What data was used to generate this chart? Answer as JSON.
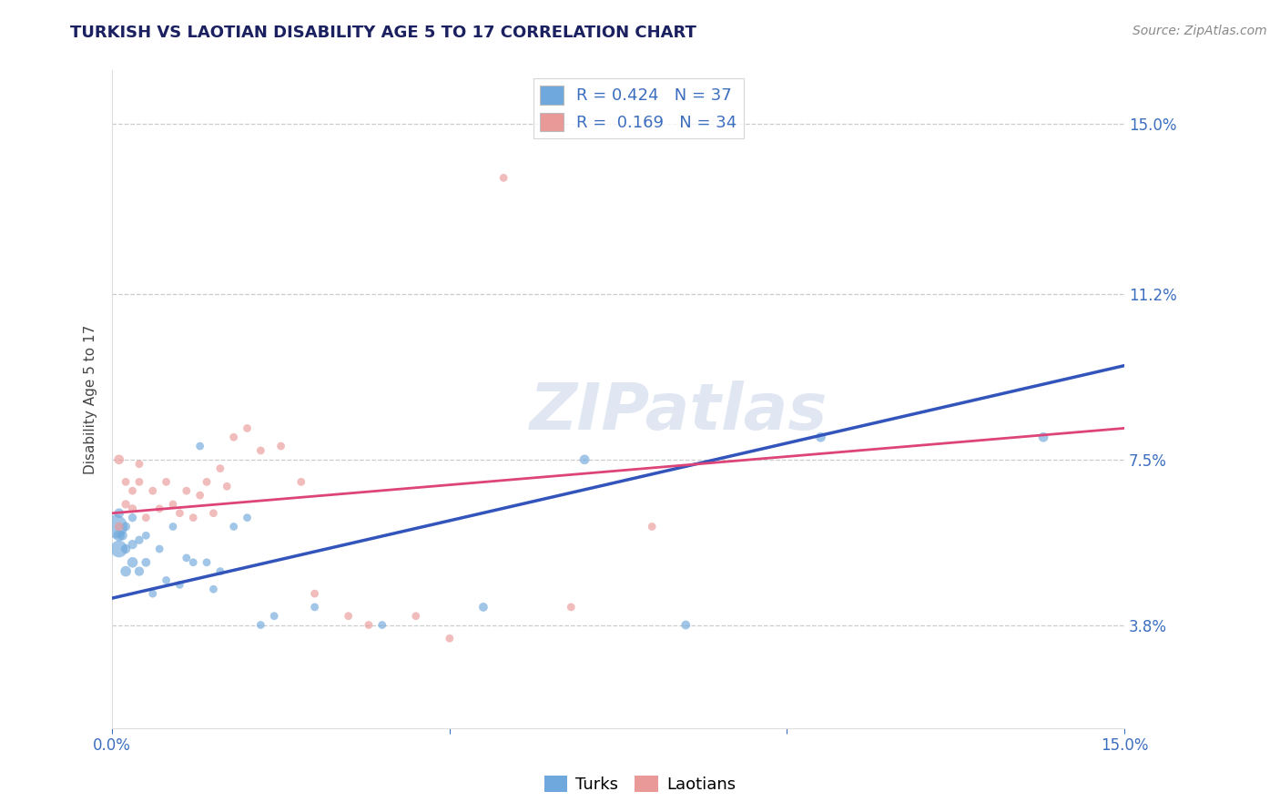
{
  "title": "TURKISH VS LAOTIAN DISABILITY AGE 5 TO 17 CORRELATION CHART",
  "ylabel": "Disability Age 5 to 17",
  "source_text": "Source: ZipAtlas.com",
  "xlim": [
    0.0,
    0.15
  ],
  "ylim": [
    0.015,
    0.162
  ],
  "ytick_labels": [
    "3.8%",
    "7.5%",
    "11.2%",
    "15.0%"
  ],
  "ytick_values": [
    0.038,
    0.075,
    0.112,
    0.15
  ],
  "legend_blue_text": "R = 0.424   N = 37",
  "legend_pink_text": "R =  0.169   N = 34",
  "blue_color": "#6fa8dc",
  "pink_color": "#ea9999",
  "line_blue_color": "#3355bb",
  "line_pink_color": "#dd4477",
  "watermark_text": "ZIPatlas",
  "turks_x": [
    0.0005,
    0.001,
    0.001,
    0.001,
    0.0015,
    0.002,
    0.002,
    0.002,
    0.003,
    0.003,
    0.003,
    0.004,
    0.004,
    0.005,
    0.005,
    0.006,
    0.007,
    0.008,
    0.009,
    0.01,
    0.011,
    0.012,
    0.013,
    0.014,
    0.015,
    0.016,
    0.018,
    0.02,
    0.022,
    0.024,
    0.03,
    0.04,
    0.055,
    0.07,
    0.085,
    0.105,
    0.138
  ],
  "turks_y": [
    0.06,
    0.055,
    0.058,
    0.063,
    0.058,
    0.05,
    0.055,
    0.06,
    0.052,
    0.056,
    0.062,
    0.05,
    0.057,
    0.052,
    0.058,
    0.045,
    0.055,
    0.048,
    0.06,
    0.047,
    0.053,
    0.052,
    0.078,
    0.052,
    0.046,
    0.05,
    0.06,
    0.062,
    0.038,
    0.04,
    0.042,
    0.038,
    0.042,
    0.075,
    0.038,
    0.08,
    0.08
  ],
  "turks_size": [
    350,
    180,
    80,
    60,
    60,
    70,
    55,
    50,
    70,
    55,
    45,
    55,
    45,
    50,
    40,
    40,
    40,
    40,
    40,
    40,
    40,
    40,
    40,
    40,
    40,
    40,
    40,
    40,
    40,
    40,
    40,
    40,
    50,
    60,
    50,
    60,
    60
  ],
  "laotians_x": [
    0.001,
    0.001,
    0.002,
    0.002,
    0.003,
    0.003,
    0.004,
    0.004,
    0.005,
    0.006,
    0.007,
    0.008,
    0.009,
    0.01,
    0.011,
    0.012,
    0.013,
    0.014,
    0.015,
    0.016,
    0.017,
    0.018,
    0.02,
    0.022,
    0.025,
    0.028,
    0.03,
    0.035,
    0.038,
    0.045,
    0.05,
    0.058,
    0.068,
    0.08
  ],
  "laotians_y": [
    0.075,
    0.06,
    0.065,
    0.07,
    0.064,
    0.068,
    0.07,
    0.074,
    0.062,
    0.068,
    0.064,
    0.07,
    0.065,
    0.063,
    0.068,
    0.062,
    0.067,
    0.07,
    0.063,
    0.073,
    0.069,
    0.08,
    0.082,
    0.077,
    0.078,
    0.07,
    0.045,
    0.04,
    0.038,
    0.04,
    0.035,
    0.138,
    0.042,
    0.06
  ],
  "laotians_size": [
    60,
    50,
    45,
    40,
    45,
    40,
    40,
    40,
    40,
    40,
    40,
    40,
    40,
    40,
    40,
    40,
    40,
    40,
    40,
    40,
    40,
    40,
    40,
    40,
    40,
    40,
    40,
    40,
    40,
    40,
    40,
    40,
    40,
    40
  ],
  "blue_line_x": [
    0.0,
    0.15
  ],
  "blue_line_y": [
    0.044,
    0.096
  ],
  "pink_line_x": [
    0.0,
    0.15
  ],
  "pink_line_y": [
    0.063,
    0.082
  ]
}
